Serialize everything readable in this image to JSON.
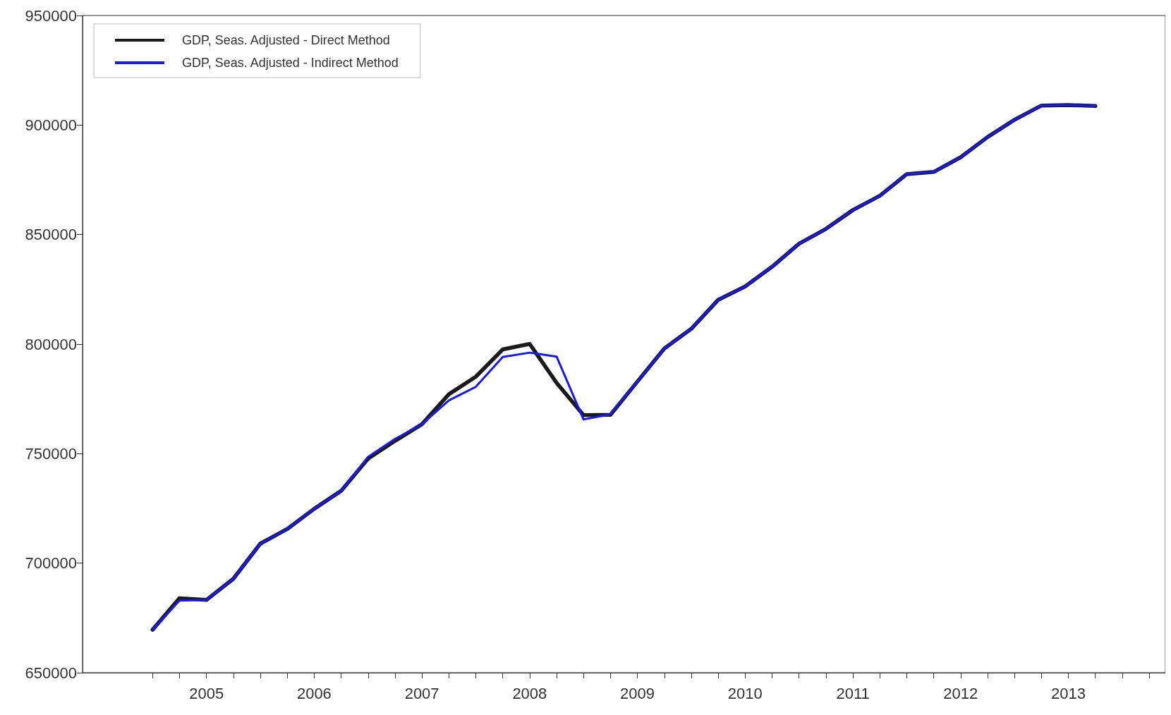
{
  "chart_data": {
    "type": "line",
    "x": [
      2005,
      2005.25,
      2005.5,
      2005.75,
      2006,
      2006.25,
      2006.5,
      2006.75,
      2007,
      2007.25,
      2007.5,
      2007.75,
      2008,
      2008.25,
      2008.5,
      2008.75,
      2009,
      2009.25,
      2009.5,
      2009.75,
      2010,
      2010.25,
      2010.5,
      2010.75,
      2011,
      2011.25,
      2011.5,
      2011.75,
      2012,
      2012.25,
      2012.5,
      2012.75,
      2013,
      2013.25,
      2013.5,
      2013.75
    ],
    "series": [
      {
        "name": "GDP, Seas. Adjusted - Direct Method",
        "color": "#1a1a1a",
        "values": [
          669600,
          684000,
          683200,
          692900,
          708900,
          715600,
          724800,
          733000,
          747700,
          755800,
          763400,
          777100,
          785100,
          797600,
          800100,
          782300,
          767600,
          767700,
          782900,
          798000,
          807000,
          820200,
          826300,
          835300,
          845800,
          852600,
          861200,
          867700,
          877600,
          878600,
          885300,
          894500,
          902400,
          908900,
          909100,
          908700
        ]
      },
      {
        "name": "GDP, Seas. Adjusted - Indirect Method",
        "color": "#1a1ae6",
        "values": [
          669600,
          682900,
          683200,
          692900,
          708900,
          715600,
          724800,
          733000,
          748500,
          756700,
          763400,
          774300,
          780500,
          794100,
          796100,
          794300,
          765600,
          768000,
          782900,
          798000,
          807000,
          820200,
          826300,
          835300,
          845800,
          852600,
          861200,
          867700,
          877600,
          878600,
          885300,
          894500,
          902400,
          908900,
          909100,
          908700
        ]
      }
    ],
    "xlim": [
      2004.35,
      2014.4
    ],
    "xticks": [
      {
        "value": 2005,
        "label": null
      },
      {
        "value": 2005.25,
        "label": null
      },
      {
        "value": 2005.5,
        "label": "2005"
      },
      {
        "value": 2005.75,
        "label": null
      },
      {
        "value": 2006,
        "label": null
      },
      {
        "value": 2006.25,
        "label": null
      },
      {
        "value": 2006.5,
        "label": "2006"
      },
      {
        "value": 2006.75,
        "label": null
      },
      {
        "value": 2007,
        "label": null
      },
      {
        "value": 2007.25,
        "label": null
      },
      {
        "value": 2007.5,
        "label": "2007"
      },
      {
        "value": 2007.75,
        "label": null
      },
      {
        "value": 2008,
        "label": null
      },
      {
        "value": 2008.25,
        "label": null
      },
      {
        "value": 2008.5,
        "label": "2008"
      },
      {
        "value": 2008.75,
        "label": null
      },
      {
        "value": 2009,
        "label": null
      },
      {
        "value": 2009.25,
        "label": null
      },
      {
        "value": 2009.5,
        "label": "2009"
      },
      {
        "value": 2009.75,
        "label": null
      },
      {
        "value": 2010,
        "label": null
      },
      {
        "value": 2010.25,
        "label": null
      },
      {
        "value": 2010.5,
        "label": "2010"
      },
      {
        "value": 2010.75,
        "label": null
      },
      {
        "value": 2011,
        "label": null
      },
      {
        "value": 2011.25,
        "label": null
      },
      {
        "value": 2011.5,
        "label": "2011"
      },
      {
        "value": 2011.75,
        "label": null
      },
      {
        "value": 2012,
        "label": null
      },
      {
        "value": 2012.25,
        "label": null
      },
      {
        "value": 2012.5,
        "label": "2012"
      },
      {
        "value": 2012.75,
        "label": null
      },
      {
        "value": 2013,
        "label": null
      },
      {
        "value": 2013.25,
        "label": null
      },
      {
        "value": 2013.5,
        "label": "2013"
      },
      {
        "value": 2013.75,
        "label": null
      },
      {
        "value": 2014,
        "label": null
      },
      {
        "value": 2014.25,
        "label": null
      }
    ],
    "ylim": [
      650000,
      950000
    ],
    "yticks": [
      650000,
      700000,
      750000,
      800000,
      850000,
      900000,
      950000
    ],
    "grid": false,
    "legend": "top left",
    "marker": "none",
    "line_style": "solid"
  }
}
